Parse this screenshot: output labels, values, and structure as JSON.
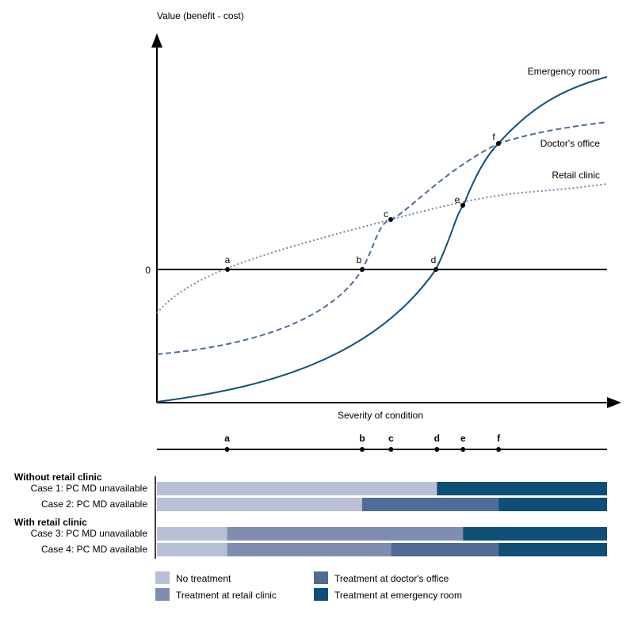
{
  "diagram": {
    "y_axis_label": "Value (benefit - cost)",
    "x_axis_label": "Severity of condition",
    "zero_label": "0",
    "curves": [
      {
        "id": "er",
        "name": "Emergency room",
        "style": "solid",
        "color": "#0f5078"
      },
      {
        "id": "doctor",
        "name": "Doctor's office",
        "style": "dashed",
        "color": "#4f6c9a"
      },
      {
        "id": "retail",
        "name": "Retail clinic",
        "style": "dotted",
        "color": "#6f86ad"
      }
    ],
    "crossing_points": [
      {
        "label": "a",
        "x": 0.156
      },
      {
        "label": "b",
        "x": 0.456
      },
      {
        "label": "c",
        "x": 0.52
      },
      {
        "label": "d",
        "x": 0.622
      },
      {
        "label": "e",
        "x": 0.68
      },
      {
        "label": "f",
        "x": 0.759
      }
    ]
  },
  "bars": {
    "group1_title": "Without retail clinic",
    "group2_title": "With retail clinic",
    "cases": [
      {
        "label": "Case 1: PC MD unavailable",
        "segments": [
          {
            "category": "none",
            "from": 0,
            "to": 0.622
          },
          {
            "category": "er",
            "from": 0.622,
            "to": 1
          }
        ]
      },
      {
        "label": "Case 2: PC MD available",
        "segments": [
          {
            "category": "none",
            "from": 0,
            "to": 0.456
          },
          {
            "category": "doctor",
            "from": 0.456,
            "to": 0.759
          },
          {
            "category": "er",
            "from": 0.759,
            "to": 1
          }
        ]
      },
      {
        "label": "Case 3: PC MD unavailable",
        "segments": [
          {
            "category": "none",
            "from": 0,
            "to": 0.156
          },
          {
            "category": "retail",
            "from": 0.156,
            "to": 0.68
          },
          {
            "category": "er",
            "from": 0.68,
            "to": 1
          }
        ]
      },
      {
        "label": "Case 4: PC MD available",
        "segments": [
          {
            "category": "none",
            "from": 0,
            "to": 0.156
          },
          {
            "category": "retail",
            "from": 0.156,
            "to": 0.52
          },
          {
            "category": "doctor",
            "from": 0.52,
            "to": 0.759
          },
          {
            "category": "er",
            "from": 0.759,
            "to": 1
          }
        ]
      }
    ]
  },
  "legend": [
    {
      "category": "none",
      "label": "No treatment",
      "color": "#b9bfd4"
    },
    {
      "category": "retail",
      "label": "Treatment at retail clinic",
      "color": "#7f8db0"
    },
    {
      "category": "doctor",
      "label": "Treatment at doctor's office",
      "color": "#506b98"
    },
    {
      "category": "er",
      "label": "Treatment at emergency room",
      "color": "#0d4f77"
    }
  ]
}
